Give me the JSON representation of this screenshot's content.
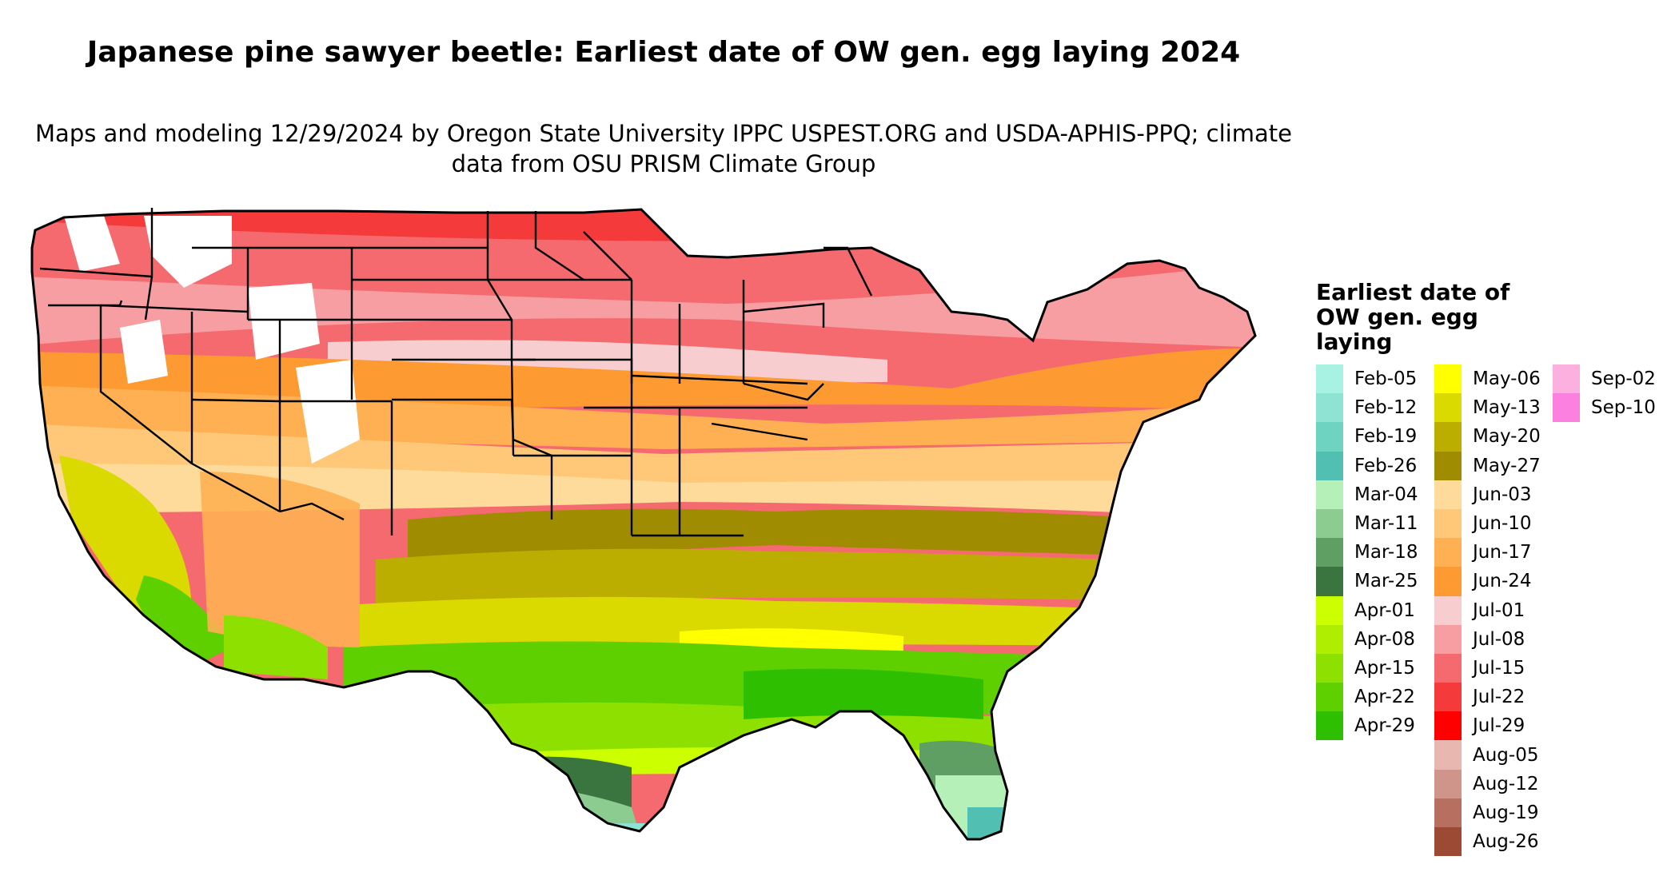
{
  "title": "Japanese pine sawyer beetle: Earliest date of OW gen. egg laying 2024",
  "subtitle": "Maps and modeling 12/29/2024 by Oregon State University IPPC USPEST.ORG and USDA-APHIS-PPQ; climate data from OSU PRISM Climate Group",
  "legend": {
    "title": "Earliest date of OW gen. egg laying",
    "items": [
      {
        "label": "Feb-05",
        "color": "#a8f2e4"
      },
      {
        "label": "Feb-12",
        "color": "#8fe3d2"
      },
      {
        "label": "Feb-19",
        "color": "#6fd3c2"
      },
      {
        "label": "Feb-26",
        "color": "#52bfb3"
      },
      {
        "label": "Mar-04",
        "color": "#b4f0b8"
      },
      {
        "label": "Mar-11",
        "color": "#8dcc91"
      },
      {
        "label": "Mar-18",
        "color": "#5f9f63"
      },
      {
        "label": "Mar-25",
        "color": "#3a7540"
      },
      {
        "label": "Apr-01",
        "color": "#ccff00"
      },
      {
        "label": "Apr-08",
        "color": "#b0ee00"
      },
      {
        "label": "Apr-15",
        "color": "#8ee000"
      },
      {
        "label": "Apr-22",
        "color": "#5ed000"
      },
      {
        "label": "Apr-29",
        "color": "#2ec000"
      },
      {
        "label": "May-06",
        "color": "#ffff00"
      },
      {
        "label": "May-13",
        "color": "#dada00"
      },
      {
        "label": "May-20",
        "color": "#bcae00"
      },
      {
        "label": "May-27",
        "color": "#9f8c00"
      },
      {
        "label": "Jun-03",
        "color": "#fedb9a"
      },
      {
        "label": "Jun-10",
        "color": "#fec878"
      },
      {
        "label": "Jun-17",
        "color": "#feb052"
      },
      {
        "label": "Jun-24",
        "color": "#fe9a32"
      },
      {
        "label": "Jul-01",
        "color": "#f7cdd0"
      },
      {
        "label": "Jul-08",
        "color": "#f69ea2"
      },
      {
        "label": "Jul-15",
        "color": "#f46a6e"
      },
      {
        "label": "Jul-22",
        "color": "#f43a3a"
      },
      {
        "label": "Jul-29",
        "color": "#ff0000"
      },
      {
        "label": "Aug-05",
        "color": "#e8b8b0"
      },
      {
        "label": "Aug-12",
        "color": "#d0958a"
      },
      {
        "label": "Aug-19",
        "color": "#b7705f"
      },
      {
        "label": "Aug-26",
        "color": "#9c4a34"
      },
      {
        "label": "Sep-02",
        "color": "#fcb0e0"
      },
      {
        "label": "Sep-10",
        "color": "#fc80e0"
      }
    ]
  }
}
